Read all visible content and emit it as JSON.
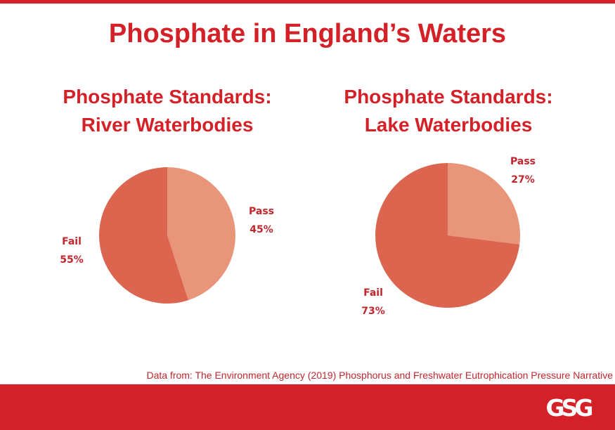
{
  "title": "Phosphate in England’s Waters",
  "colors": {
    "accent": "#d42027",
    "pass": "#e8957a",
    "fail": "#dc6550"
  },
  "chart_data": [
    {
      "type": "pie",
      "title_lines": [
        "Phosphate Standards:",
        "River Waterbodies"
      ],
      "slices": [
        {
          "label": "Pass",
          "value": 45,
          "value_label": "45%"
        },
        {
          "label": "Fail",
          "value": 55,
          "value_label": "55%"
        }
      ]
    },
    {
      "type": "pie",
      "title_lines": [
        "Phosphate Standards:",
        "Lake Waterbodies"
      ],
      "slices": [
        {
          "label": "Pass",
          "value": 27,
          "value_label": "27%"
        },
        {
          "label": "Fail",
          "value": 73,
          "value_label": "73%"
        }
      ]
    }
  ],
  "source_note": "Data from: The Environment Agency (2019) Phosphorus and Freshwater Eutrophication Pressure Narrative",
  "logo": {
    "icon": "gsg-logo-icon",
    "text": "GSG"
  }
}
